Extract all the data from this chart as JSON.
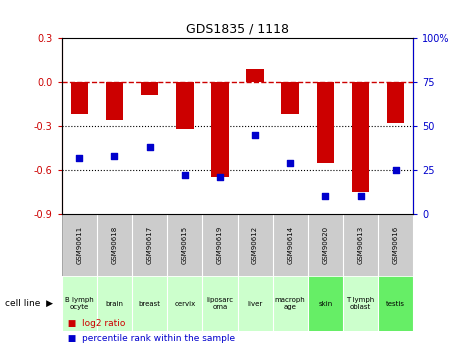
{
  "title": "GDS1835 / 1118",
  "samples": [
    "GSM90611",
    "GSM90618",
    "GSM90617",
    "GSM90615",
    "GSM90619",
    "GSM90612",
    "GSM90614",
    "GSM90620",
    "GSM90613",
    "GSM90616"
  ],
  "cell_lines": [
    "B lymph\nocyte",
    "brain",
    "breast",
    "cervix",
    "liposarc\noma",
    "liver",
    "macroph\nage",
    "skin",
    "T lymph\noblast",
    "testis"
  ],
  "cell_line_colors": [
    "#ccffcc",
    "#ccffcc",
    "#ccffcc",
    "#ccffcc",
    "#ccffcc",
    "#ccffcc",
    "#ccffcc",
    "#66ee66",
    "#ccffcc",
    "#66ee66"
  ],
  "log2_ratio": [
    -0.22,
    -0.26,
    -0.09,
    -0.32,
    -0.65,
    0.09,
    -0.22,
    -0.55,
    -0.75,
    -0.28
  ],
  "percentile_rank": [
    32,
    33,
    38,
    22,
    21,
    45,
    29,
    10,
    10,
    25
  ],
  "bar_color": "#cc0000",
  "dot_color": "#0000cc",
  "left_ylim": [
    -0.9,
    0.3
  ],
  "right_ylim": [
    0,
    100
  ],
  "left_yticks": [
    -0.9,
    -0.6,
    -0.3,
    0.0,
    0.3
  ],
  "right_yticks": [
    0,
    25,
    50,
    75,
    100
  ],
  "right_yticklabels": [
    "0",
    "25",
    "50",
    "75",
    "100%"
  ],
  "grid_values": [
    -0.3,
    -0.6
  ],
  "gsm_bg_color": "#cccccc",
  "bg_color": "#ffffff"
}
